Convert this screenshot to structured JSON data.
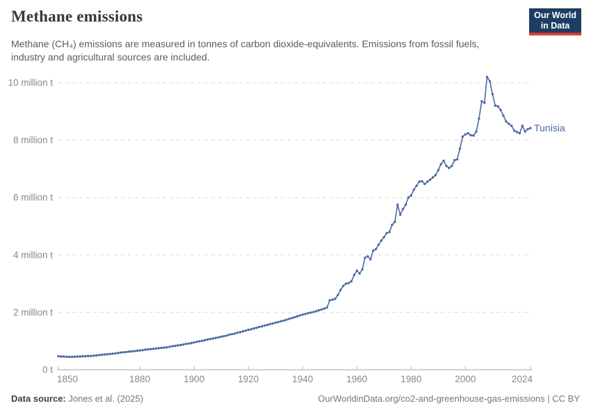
{
  "header": {
    "title": "Methane emissions",
    "subtitle_line1": "Methane (CH₄) emissions are measured in tonnes of carbon dioxide-equivalents. Emissions from fossil fuels,",
    "subtitle_line2": "industry and agricultural sources are included.",
    "logo_line1": "Our World",
    "logo_line2": "in Data"
  },
  "footer": {
    "source_label": "Data source:",
    "source_value": " Jones et al. (2025)",
    "url": "OurWorldinData.org/co2-and-greenhouse-gas-emissions",
    "separator": " | ",
    "license": "CC BY"
  },
  "colors": {
    "line": "#4a69a1",
    "grid": "#d9d9d9",
    "axis": "#a3a3a3",
    "tick_mark": "#b3b3b3",
    "tick_text": "#878787",
    "logo_bg": "#1d3d63",
    "logo_red": "#dc3d32"
  },
  "chart_data": {
    "type": "line",
    "title": "Methane emissions",
    "ylabel": "",
    "xlabel": "",
    "unit": "million tonnes of CO2-equivalents",
    "grid": "dashed-horizontal",
    "legend_position": "end-of-line-label",
    "x_domain": [
      1850,
      2024
    ],
    "ylim": [
      0,
      10.4
    ],
    "x_ticks": [
      1850,
      1880,
      1900,
      1920,
      1940,
      1960,
      1980,
      2000,
      2024
    ],
    "y_ticks": [
      {
        "value": 0,
        "label": "0 t"
      },
      {
        "value": 2,
        "label": "2 million t"
      },
      {
        "value": 4,
        "label": "4 million t"
      },
      {
        "value": 6,
        "label": "6 million t"
      },
      {
        "value": 8,
        "label": "8 million t"
      },
      {
        "value": 10,
        "label": "10 million t"
      }
    ],
    "series": [
      {
        "name": "Tunisia",
        "start_year": 1850,
        "values": [
          0.47,
          0.46,
          0.46,
          0.45,
          0.45,
          0.45,
          0.45,
          0.46,
          0.46,
          0.47,
          0.47,
          0.48,
          0.48,
          0.49,
          0.5,
          0.51,
          0.52,
          0.53,
          0.54,
          0.55,
          0.56,
          0.57,
          0.58,
          0.6,
          0.61,
          0.62,
          0.63,
          0.64,
          0.65,
          0.66,
          0.67,
          0.68,
          0.7,
          0.71,
          0.72,
          0.73,
          0.74,
          0.75,
          0.76,
          0.77,
          0.78,
          0.8,
          0.82,
          0.83,
          0.85,
          0.86,
          0.88,
          0.9,
          0.91,
          0.93,
          0.95,
          0.97,
          0.99,
          1.01,
          1.03,
          1.05,
          1.07,
          1.09,
          1.11,
          1.13,
          1.15,
          1.17,
          1.19,
          1.22,
          1.24,
          1.26,
          1.29,
          1.31,
          1.34,
          1.36,
          1.39,
          1.41,
          1.44,
          1.46,
          1.49,
          1.51,
          1.54,
          1.56,
          1.59,
          1.61,
          1.64,
          1.66,
          1.69,
          1.71,
          1.74,
          1.77,
          1.8,
          1.83,
          1.86,
          1.89,
          1.92,
          1.94,
          1.97,
          1.99,
          2.01,
          2.04,
          2.07,
          2.1,
          2.13,
          2.17,
          2.42,
          2.44,
          2.47,
          2.6,
          2.78,
          2.92,
          3.0,
          3.02,
          3.08,
          3.3,
          3.45,
          3.35,
          3.5,
          3.9,
          3.95,
          3.85,
          4.15,
          4.2,
          4.35,
          4.5,
          4.62,
          4.76,
          4.8,
          5.05,
          5.15,
          5.75,
          5.4,
          5.6,
          5.75,
          6.0,
          6.07,
          6.27,
          6.41,
          6.55,
          6.57,
          6.47,
          6.55,
          6.62,
          6.7,
          6.78,
          6.95,
          7.16,
          7.28,
          7.1,
          7.03,
          7.1,
          7.3,
          7.33,
          7.7,
          8.12,
          8.2,
          8.24,
          8.17,
          8.16,
          8.3,
          8.75,
          9.35,
          9.3,
          10.2,
          10.05,
          9.6,
          9.2,
          9.18,
          9.05,
          8.85,
          8.65,
          8.57,
          8.5,
          8.33,
          8.28,
          8.24,
          8.5,
          8.3,
          8.38,
          8.42
        ]
      }
    ]
  }
}
